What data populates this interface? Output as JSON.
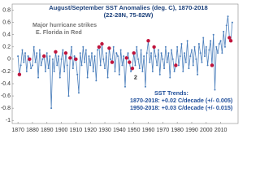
{
  "chart_data": {
    "type": "line",
    "title": "August/September SST Anomalies (deg. C), 1870-2018",
    "subtitle": "(22-28N, 75-82W)",
    "annotations": [
      "Major hurricane strikes",
      "E. Florida in Red",
      "2",
      "SST Trends:",
      "1870-2018: +0.02 C/decade (+/- 0.005)",
      "1950-2018: +0.03 C/decade (+/- 0.015)"
    ],
    "x": [
      1870,
      1871,
      1872,
      1873,
      1874,
      1875,
      1876,
      1877,
      1878,
      1879,
      1880,
      1881,
      1882,
      1883,
      1884,
      1885,
      1886,
      1887,
      1888,
      1889,
      1890,
      1891,
      1892,
      1893,
      1894,
      1895,
      1896,
      1897,
      1898,
      1899,
      1900,
      1901,
      1902,
      1903,
      1904,
      1905,
      1906,
      1907,
      1908,
      1909,
      1910,
      1911,
      1912,
      1913,
      1914,
      1915,
      1916,
      1917,
      1918,
      1919,
      1920,
      1921,
      1922,
      1923,
      1924,
      1925,
      1926,
      1927,
      1928,
      1929,
      1930,
      1931,
      1932,
      1933,
      1934,
      1935,
      1936,
      1937,
      1938,
      1939,
      1940,
      1941,
      1942,
      1943,
      1944,
      1945,
      1946,
      1947,
      1948,
      1949,
      1950,
      1951,
      1952,
      1953,
      1954,
      1955,
      1956,
      1957,
      1958,
      1959,
      1960,
      1961,
      1962,
      1963,
      1964,
      1965,
      1966,
      1967,
      1968,
      1969,
      1970,
      1971,
      1972,
      1973,
      1974,
      1975,
      1976,
      1977,
      1978,
      1979,
      1980,
      1981,
      1982,
      1983,
      1984,
      1985,
      1986,
      1987,
      1988,
      1989,
      1990,
      1991,
      1992,
      1993,
      1994,
      1995,
      1996,
      1997,
      1998,
      1999,
      2000,
      2001,
      2002,
      2003,
      2004,
      2005,
      2006,
      2007,
      2008,
      2009,
      2010,
      2011,
      2012,
      2013,
      2014,
      2015,
      2016,
      2017,
      2018
    ],
    "series": [
      {
        "color": "#4a7ebb",
        "values": [
          0.05,
          -0.25,
          -0.1,
          0.15,
          -0.05,
          0.1,
          -0.2,
          0.05,
          0.0,
          -0.15,
          -0.1,
          0.2,
          -0.05,
          0.1,
          -0.3,
          0.15,
          -0.1,
          0.0,
          0.05,
          -0.2,
          0.1,
          -0.15,
          0.05,
          -0.8,
          0.0,
          -0.2,
          0.12,
          -0.1,
          0.05,
          -0.3,
          0.0,
          0.15,
          -0.2,
          0.1,
          -0.1,
          -0.6,
          0.02,
          0.2,
          -0.15,
          0.05,
          0.0,
          -0.25,
          -0.55,
          0.1,
          -0.1,
          0.2,
          -0.05,
          0.15,
          -0.3,
          0.05,
          -0.1,
          0.1,
          -0.2,
          0.05,
          -0.35,
          0.15,
          0.2,
          -0.1,
          0.25,
          0.0,
          -0.15,
          0.1,
          -0.3,
          0.18,
          0.0,
          -0.05,
          0.2,
          -0.2,
          0.1,
          0.05,
          -0.25,
          0.15,
          -0.1,
          0.05,
          -0.45,
          0.02,
          0.1,
          -0.05,
          -0.2,
          -0.15,
          0.1,
          -0.1,
          0.2,
          0.0,
          -0.15,
          0.15,
          -0.2,
          0.05,
          -0.45,
          0.1,
          0.3,
          -0.05,
          0.1,
          -0.2,
          0.2,
          0.05,
          -0.1,
          0.15,
          -0.25,
          0.1,
          0.0,
          -0.15,
          0.2,
          -0.05,
          0.1,
          -0.3,
          0.15,
          0.0,
          -0.2,
          -0.1,
          0.2,
          -0.1,
          0.05,
          0.25,
          -0.2,
          0.1,
          -0.05,
          0.3,
          -0.15,
          0.05,
          0.15,
          -0.1,
          0.2,
          0.0,
          -0.25,
          0.25,
          0.1,
          -0.05,
          0.35,
          0.05,
          0.2,
          -0.1,
          0.15,
          0.3,
          -0.1,
          0.4,
          -0.5,
          0.2,
          0.1,
          0.25,
          0.3,
          0.1,
          0.45,
          0.2,
          0.55,
          0.7,
          0.35,
          0.3,
          0.6
        ]
      }
    ],
    "highlight_x": [
      1871,
      1878,
      1888,
      1896,
      1903,
      1906,
      1910,
      1926,
      1928,
      1933,
      1935,
      1945,
      1947,
      1949,
      1950,
      1960,
      1964,
      1979,
      2004,
      2016,
      2017
    ],
    "highlight_color": "#c0143c",
    "xlim": [
      1866,
      2022
    ],
    "xticks": [
      1870,
      1880,
      1890,
      1900,
      1910,
      1920,
      1930,
      1940,
      1950,
      1960,
      1970,
      1980,
      1990,
      2000,
      2010
    ],
    "ylim": [
      -1.05,
      0.9
    ],
    "yticks": [
      0.8,
      0.6,
      0.4,
      0.2,
      0,
      -0.2,
      -0.4,
      -0.6,
      -0.8,
      -1
    ],
    "grid": false
  }
}
